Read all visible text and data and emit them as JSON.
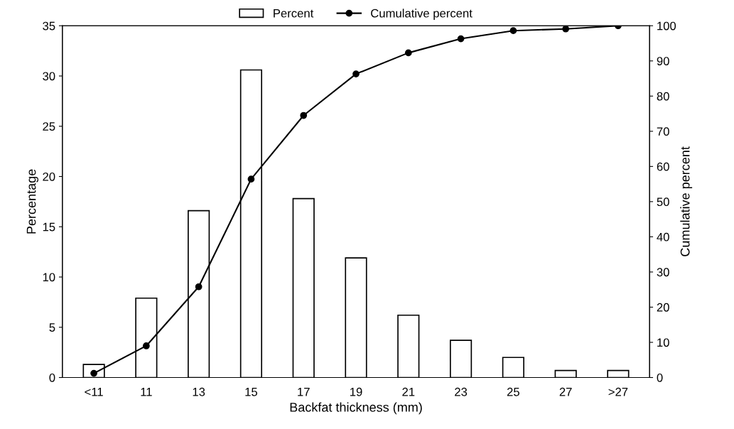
{
  "chart_data": {
    "type": "bar",
    "xlabel": "Backfat thickness (mm)",
    "ylabel": "Percentage",
    "y2label": "Cumulative percent",
    "categories": [
      "<11",
      "11",
      "13",
      "15",
      "17",
      "19",
      "21",
      "23",
      "25",
      "27",
      ">27"
    ],
    "series": [
      {
        "name": "Percent",
        "color": "#ffffff",
        "values": [
          1.3,
          7.9,
          16.6,
          30.6,
          17.8,
          11.9,
          6.2,
          3.7,
          2.0,
          0.7,
          0.7
        ]
      },
      {
        "name": "Cumulative percent",
        "type": "line",
        "axis": "y2",
        "color": "#000000",
        "values": [
          1.2,
          9.0,
          25.8,
          56.4,
          74.5,
          86.3,
          92.3,
          96.3,
          98.6,
          99.1,
          100
        ]
      }
    ],
    "ylim": [
      0,
      35
    ],
    "yticks": [
      0,
      5,
      10,
      15,
      20,
      25,
      30,
      35
    ],
    "y2lim": [
      0,
      100
    ],
    "y2ticks": [
      0,
      10,
      20,
      30,
      40,
      50,
      60,
      70,
      80,
      90,
      100
    ],
    "legend": "top",
    "grid": false,
    "marker": "circle",
    "line_style": "solid"
  }
}
